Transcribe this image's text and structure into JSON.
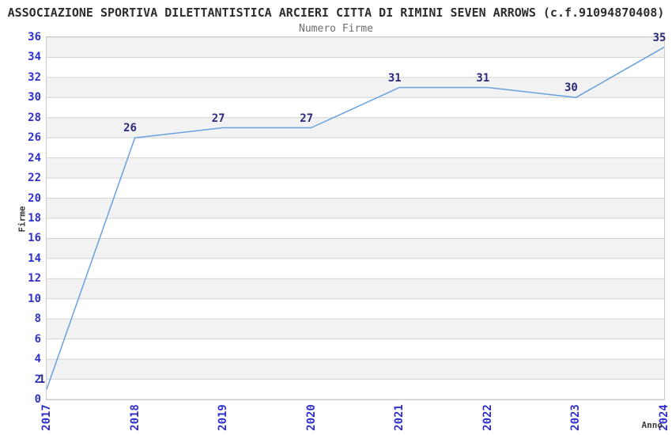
{
  "header": {
    "title": "ASSOCIAZIONE SPORTIVA DILETTANTISTICA ARCIERI CITTA DI RIMINI SEVEN ARROWS (c.f.91094870408)",
    "subtitle": "Numero Firme"
  },
  "chart_data": {
    "type": "line",
    "title": "ASSOCIAZIONE SPORTIVA DILETTANTISTICA ARCIERI CITTA DI RIMINI SEVEN ARROWS (c.f.91094870408)",
    "subtitle": "Numero Firme",
    "xlabel": "Anno",
    "ylabel": "Firme",
    "categories": [
      "2017",
      "2018",
      "2019",
      "2020",
      "2021",
      "2022",
      "2023",
      "2024"
    ],
    "values": [
      1,
      26,
      27,
      27,
      31,
      31,
      30,
      35
    ],
    "point_labels": [
      "1",
      "26",
      "27",
      "27",
      "31",
      "31",
      "30",
      "35"
    ],
    "ylim": [
      0,
      36
    ],
    "ytick_step": 2,
    "grid": true,
    "band_fill": "alternating-horizontal",
    "legend_position": "none",
    "colors": {
      "line": "#67a1e0",
      "tick_label": "#3030cd",
      "point_label": "#29297e",
      "band_gray": "#f2f2f2",
      "grid_line": "#d4d4d4",
      "plot_border": "#c9c9c9",
      "title": "#2d2d2d",
      "subtitle": "#6e6e6e",
      "axis_label": "#3a3a3a",
      "background": "#ffffff"
    }
  }
}
